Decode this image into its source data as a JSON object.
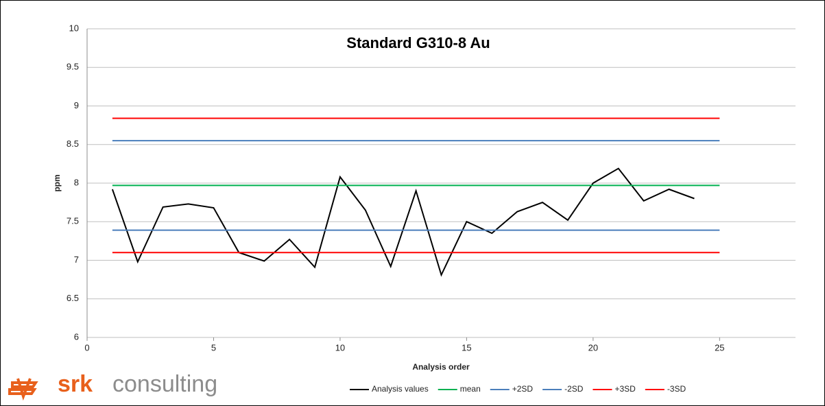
{
  "chart_data": {
    "type": "line",
    "title": "Standard G310-8 Au",
    "xlabel": "Analysis order",
    "ylabel": "ppm",
    "xlim": [
      0,
      28
    ],
    "xticks": [
      0,
      5,
      10,
      15,
      20,
      25
    ],
    "ylim": [
      6,
      10
    ],
    "yticks": [
      6,
      6.5,
      7,
      7.5,
      8,
      8.5,
      9,
      9.5,
      10
    ],
    "grid": true,
    "legend": "bottom",
    "series": [
      {
        "name": "Analysis values",
        "color": "#000000",
        "x": [
          1,
          2,
          3,
          4,
          5,
          6,
          7,
          8,
          9,
          10,
          11,
          12,
          13,
          14,
          15,
          16,
          17,
          18,
          19,
          20,
          21,
          22,
          23,
          24
        ],
        "values": [
          7.92,
          6.98,
          7.69,
          7.73,
          7.68,
          7.1,
          6.99,
          7.27,
          6.91,
          8.08,
          7.65,
          6.92,
          7.9,
          6.81,
          7.5,
          7.35,
          7.63,
          7.75,
          7.52,
          8.0,
          8.19,
          7.77,
          7.92,
          7.8
        ]
      },
      {
        "name": "mean",
        "color": "#00b050",
        "x": [
          1,
          25
        ],
        "values": [
          7.97,
          7.97
        ]
      },
      {
        "name": "+2SD",
        "color": "#4a7ebb",
        "x": [
          1,
          25
        ],
        "values": [
          8.55,
          8.55
        ]
      },
      {
        "name": "-2SD",
        "color": "#4a7ebb",
        "x": [
          1,
          25
        ],
        "values": [
          7.39,
          7.39
        ]
      },
      {
        "name": "+3SD",
        "color": "#ff0000",
        "x": [
          1,
          25
        ],
        "values": [
          8.84,
          8.84
        ]
      },
      {
        "name": "-3SD",
        "color": "#ff0000",
        "x": [
          1,
          25
        ],
        "values": [
          7.1,
          7.1
        ]
      }
    ]
  },
  "branding": {
    "bold": "srk",
    "text": "consulting"
  }
}
